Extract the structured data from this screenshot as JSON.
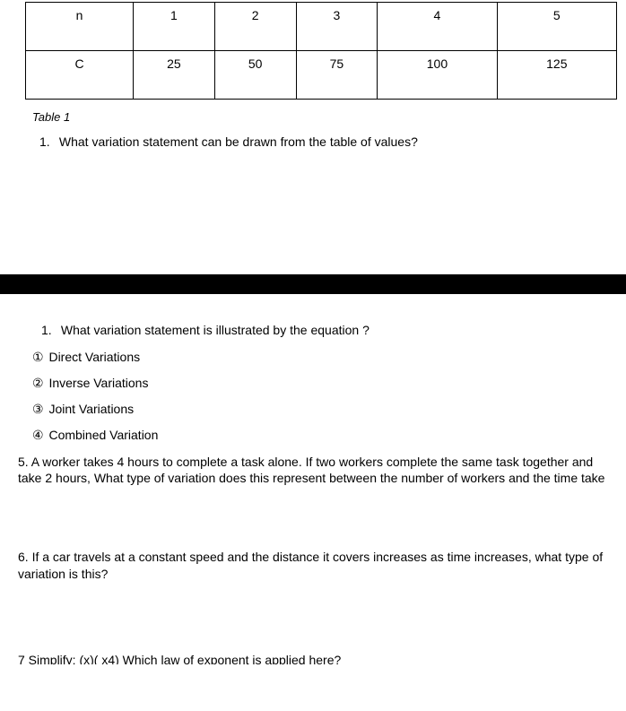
{
  "table": {
    "header_label": "n",
    "header_values": [
      "1",
      "2",
      "3",
      "4",
      "5"
    ],
    "row_label": "C",
    "row_values": [
      "25",
      "50",
      "75",
      "100",
      "125"
    ]
  },
  "caption": "Table 1",
  "question1": {
    "number": "1.",
    "text": "What variation statement can be drawn from the table of values?"
  },
  "section2": {
    "q1": {
      "number": "1.",
      "text": "What variation statement is illustrated by the equation  ?"
    },
    "choices": {
      "c1_num": "①",
      "c1_text": "Direct Variations",
      "c2_num": "②",
      "c2_text": "Inverse Variations",
      "c3_num": "③",
      "c3_text": "Joint Variations",
      "c4_num": "④",
      "c4_text": " Combined Variation"
    },
    "q5": "5. A worker takes 4 hours to complete a task alone. If two workers complete the same task together and take 2 hours, What type of variation does this represent between the number of workers and the time take",
    "q6": "6. If a car travels at a constant speed and the distance it covers increases as time increases, what type of variation is this?",
    "q7": "7  Simplify: (x)( x4)  Which law of exponent is applied here?"
  }
}
